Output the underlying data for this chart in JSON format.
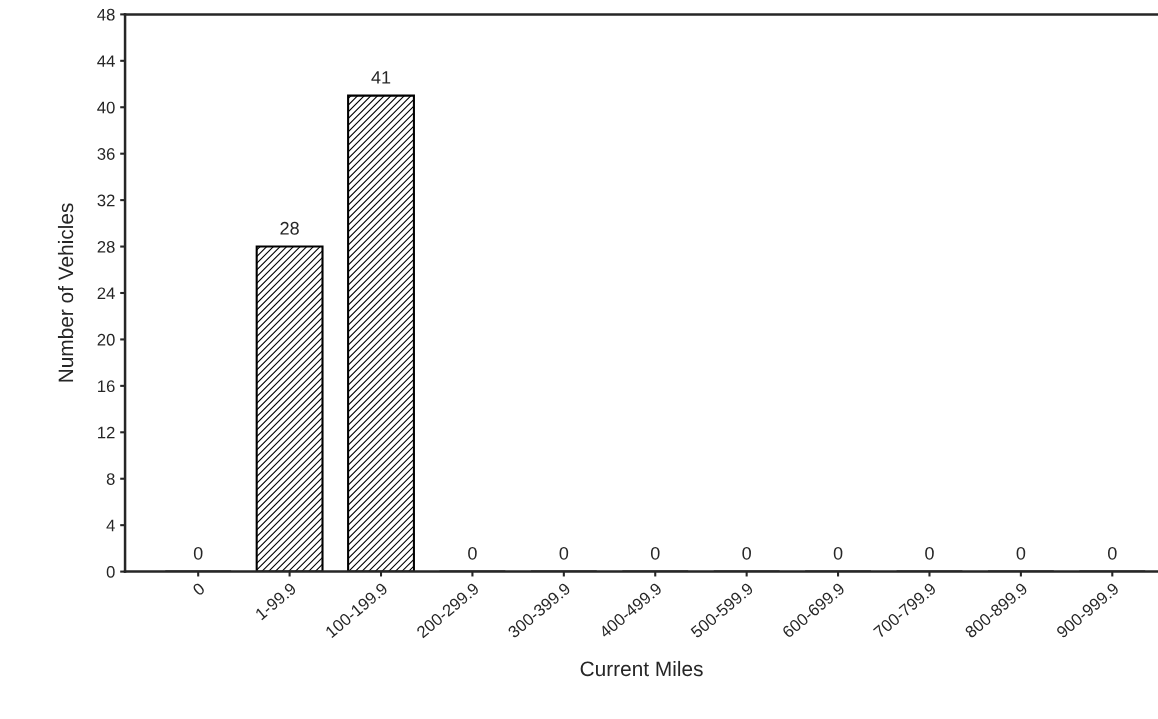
{
  "chart_data": {
    "type": "bar",
    "xlabel": "Current Miles",
    "ylabel": "Number of Vehicles",
    "categories": [
      "0",
      "1-99.9",
      "100-199.9",
      "200-299.9",
      "300-399.9",
      "400-499.9",
      "500-599.9",
      "600-699.9",
      "700-799.9",
      "800-899.9",
      "900-999.9"
    ],
    "values": [
      0,
      28,
      41,
      0,
      0,
      0,
      0,
      0,
      0,
      0,
      0
    ],
    "color": "#000000",
    "ylim": [
      0,
      48
    ],
    "yticks": [
      0,
      4,
      8,
      12,
      16,
      20,
      24,
      28,
      32,
      36,
      40,
      44,
      48
    ],
    "data_labels": true,
    "grid": false,
    "legend": false
  }
}
